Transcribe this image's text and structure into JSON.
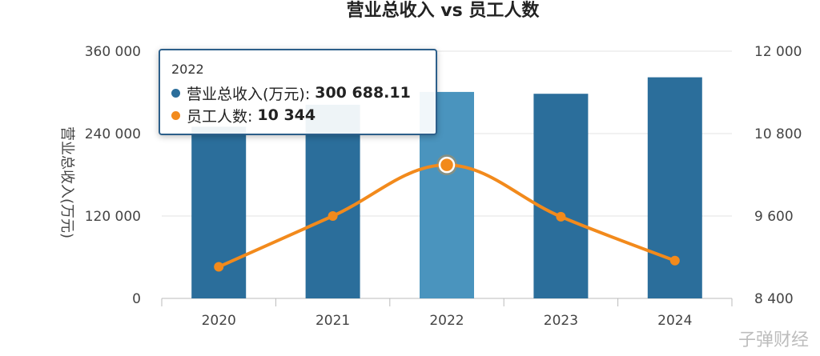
{
  "chart_data": {
    "type": "bar+line",
    "title": "营业总收入 vs 员工人数",
    "categories": [
      "2020",
      "2021",
      "2022",
      "2023",
      "2024"
    ],
    "series": [
      {
        "name": "营业总收入(万元)",
        "type": "bar",
        "axis": "left",
        "color": "#2b6e9b",
        "values": [
          250000,
          282000,
          300688.11,
          298000,
          322000
        ]
      },
      {
        "name": "员工人数",
        "type": "line",
        "axis": "right",
        "color": "#f28a1c",
        "values": [
          8860,
          9600,
          10344,
          9590,
          8950
        ]
      }
    ],
    "ylabel": "营业总收入(万元)",
    "y_left": {
      "ylim": [
        0,
        360000
      ],
      "ticks": [
        "0",
        "120 000",
        "240 000",
        "360 000"
      ]
    },
    "y_right": {
      "ylim": [
        8400,
        12000
      ],
      "ticks": [
        "8 400",
        "9 600",
        "10 800",
        "12 000"
      ]
    },
    "highlight_index": 2,
    "highlight_color": "#4a94be"
  },
  "tooltip": {
    "title": "2022",
    "rows": [
      {
        "label": "营业总收入(万元):",
        "value": "300 688.11",
        "color": "#2b6e9b"
      },
      {
        "label": "员工人数:",
        "value": "10 344",
        "color": "#f28a1c"
      }
    ]
  },
  "watermark": "子弹财经"
}
